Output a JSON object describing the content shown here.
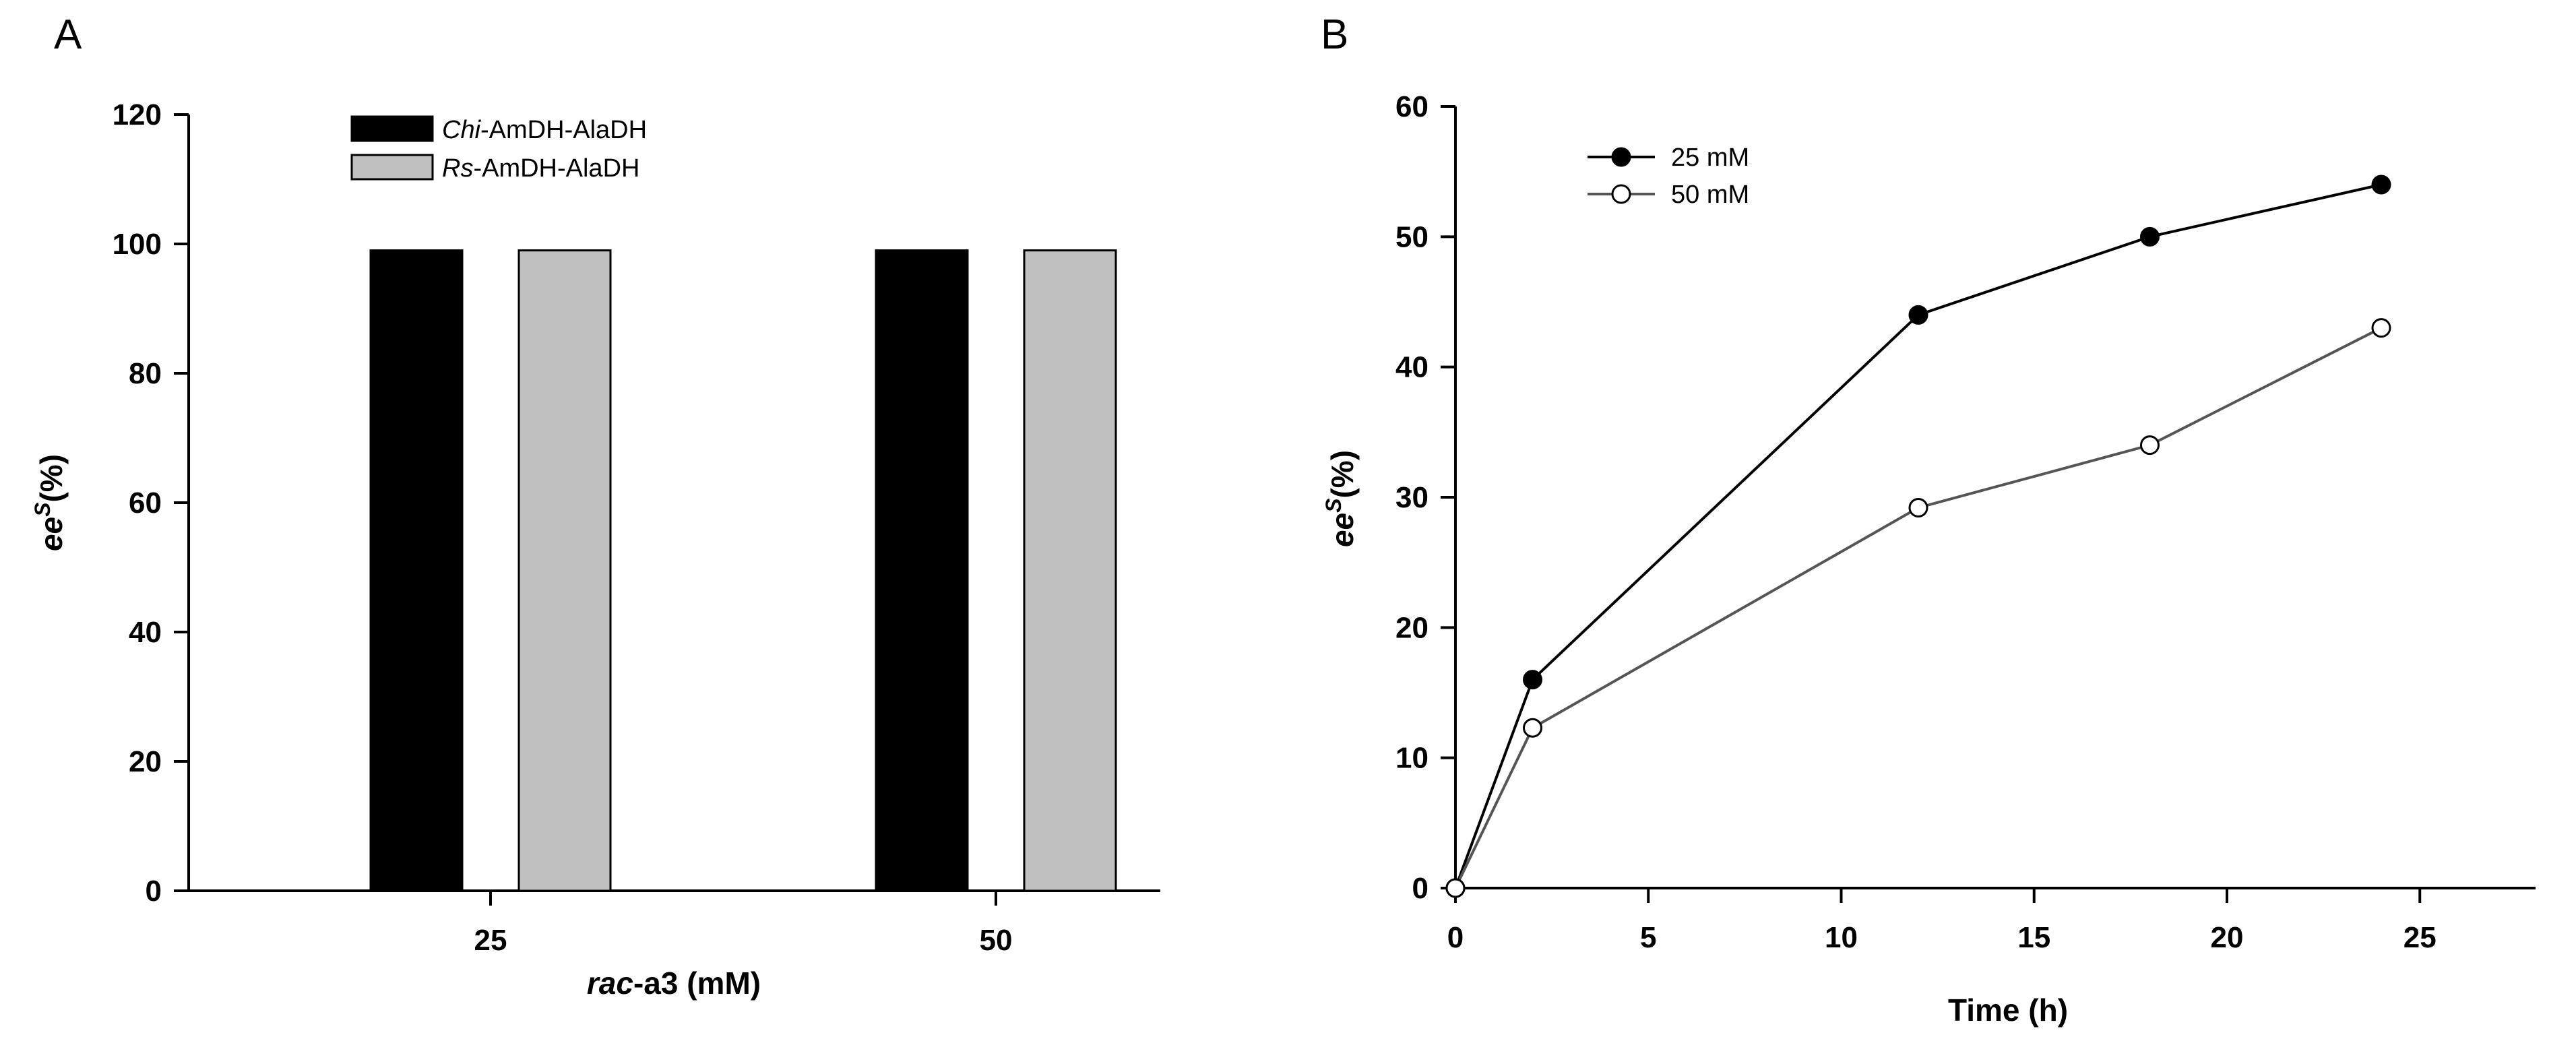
{
  "chart_data": [
    {
      "panel": "A",
      "type": "bar",
      "categories": [
        "25",
        "50"
      ],
      "series": [
        {
          "name": "Chi-AmDH-AlaDH",
          "name_italic": "Chi",
          "name_rest": "-AmDH-AlaDH",
          "color": "#000000",
          "values": [
            99,
            99
          ]
        },
        {
          "name": "Rs-AmDH-AlaDH",
          "name_italic": "Rs",
          "name_rest": "-AmDH-AlaDH",
          "color": "#c0c0c0",
          "values": [
            99,
            99
          ]
        }
      ],
      "xlabel": "rac-a3 (mM)",
      "xlabel_italic": "rac",
      "xlabel_rest": "-a3 (mM)",
      "ylabel": "ee^S (%)",
      "ylabel_main": "ee",
      "ylabel_sup": "S",
      "ylabel_rest": "(%)",
      "ylim": [
        0,
        120
      ],
      "yticks": [
        0,
        20,
        40,
        60,
        80,
        100,
        120
      ],
      "legend_position": "top-center",
      "grid": false
    },
    {
      "panel": "B",
      "type": "line",
      "series": [
        {
          "name": "25 mM",
          "marker": "filled-circle",
          "color": "#000000",
          "x": [
            0,
            2,
            12,
            18,
            24
          ],
          "y": [
            0,
            16,
            44,
            50,
            54
          ]
        },
        {
          "name": "50 mM",
          "marker": "open-circle",
          "color": "#555555",
          "x": [
            0,
            2,
            12,
            18,
            24
          ],
          "y": [
            0,
            12.3,
            29.2,
            34,
            43
          ]
        }
      ],
      "xlabel": "Time (h)",
      "ylabel": "ee^S (%)",
      "ylabel_main": "ee",
      "ylabel_sup": "S",
      "ylabel_rest": "(%)",
      "xlim": [
        0,
        28
      ],
      "ylim": [
        0,
        60
      ],
      "xticks": [
        0,
        5,
        10,
        15,
        20,
        25
      ],
      "yticks": [
        0,
        10,
        20,
        30,
        40,
        50,
        60
      ],
      "legend_position": "top-left",
      "grid": false
    }
  ]
}
